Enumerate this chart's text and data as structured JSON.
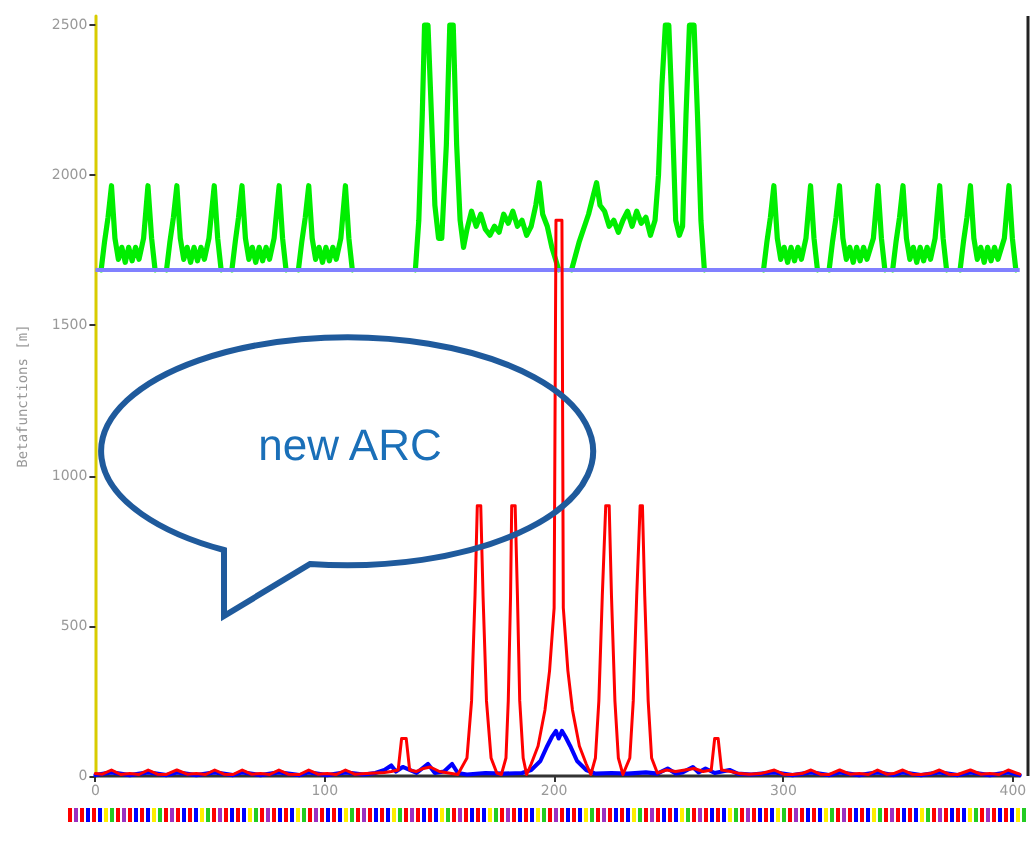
{
  "chart_data": {
    "type": "line",
    "ylabel": "Betafunctions [m]",
    "annotations": [
      "new ARC"
    ],
    "xlim": [
      0,
      403
    ],
    "xticks": [
      0,
      100,
      200,
      300,
      400
    ],
    "ylim": [
      0,
      2530
    ],
    "yticks": [
      0,
      500,
      1000,
      1500,
      2000,
      2500
    ],
    "grid": false,
    "line_style": "solid",
    "ref_lines": [
      {
        "axis": "y",
        "value": 1685,
        "label": null,
        "color": "#8080ff"
      }
    ],
    "series": [
      {
        "color": "#00ee00",
        "x": [
          2.5,
          4,
          5.5,
          7,
          8.5,
          10,
          11.5,
          13,
          14.5,
          16,
          17.5,
          19,
          21,
          22.9,
          24.5,
          26,
          29,
          31,
          32.5,
          34,
          35.5,
          37,
          38.5,
          40,
          41.5,
          43,
          44.5,
          46,
          47.5,
          49.5,
          51.8,
          53.3,
          54.8,
          57,
          59.5,
          61,
          62.4,
          63.9,
          65.4,
          66.9,
          68.4,
          69.9,
          71.4,
          72.9,
          74.4,
          75.9,
          77.9,
          80.1,
          81.6,
          83.1,
          86,
          88.5,
          90,
          91.5,
          93,
          94.5,
          96,
          97.5,
          99,
          100.5,
          102,
          103.5,
          105,
          107,
          109,
          110.5,
          112,
          125,
          139.5,
          141,
          142.5,
          143.5,
          145,
          146.5,
          148,
          149.6,
          151,
          153,
          154.5,
          156,
          157.5,
          159,
          160.5,
          162,
          164,
          166,
          168,
          170,
          172,
          174,
          176,
          178,
          180,
          182,
          184,
          186,
          188,
          190,
          192,
          193.5,
          195,
          197,
          199,
          202,
          205,
          207.6,
          211,
          215,
          218.5,
          220,
          222,
          224,
          226,
          228,
          230,
          232,
          234,
          236,
          238,
          240,
          242,
          244,
          245.5,
          247,
          248.5,
          250,
          251.5,
          253,
          254.6,
          256,
          257.5,
          259,
          261,
          262.5,
          264,
          265.5,
          280,
          291.3,
          292.8,
          294.3,
          295.8,
          297.3,
          298.8,
          300.3,
          301.8,
          303.3,
          304.8,
          306.3,
          307.8,
          309.8,
          311.8,
          313.3,
          314.8,
          317,
          319.9,
          321.4,
          322.9,
          324.4,
          325.9,
          327.4,
          328.9,
          330.4,
          331.9,
          333.4,
          334.9,
          336.4,
          339.2,
          341.2,
          342.7,
          344.2,
          346,
          347.6,
          349.1,
          350.6,
          352.1,
          353.6,
          355.1,
          356.6,
          358.1,
          359.6,
          361.1,
          362.6,
          364.1,
          366.1,
          368.1,
          369.6,
          371.1,
          374,
          377,
          378.5,
          380,
          381.5,
          383,
          384.5,
          386,
          387.5,
          389,
          390.5,
          392,
          393.5,
          396.3,
          398.3,
          399.8,
          401.3
        ],
        "values": [
          1685,
          1780,
          1860,
          1965,
          1790,
          1720,
          1760,
          1710,
          1760,
          1715,
          1760,
          1720,
          1790,
          1965,
          1790,
          1685,
          null,
          1685,
          1780,
          1860,
          1965,
          1790,
          1720,
          1760,
          1710,
          1760,
          1715,
          1760,
          1720,
          1790,
          1965,
          1790,
          1685,
          null,
          1685,
          1780,
          1860,
          1965,
          1790,
          1720,
          1760,
          1710,
          1760,
          1715,
          1760,
          1720,
          1790,
          1965,
          1790,
          1685,
          null,
          1685,
          1780,
          1860,
          1965,
          1790,
          1720,
          1760,
          1710,
          1760,
          1715,
          1760,
          1720,
          1790,
          1965,
          1790,
          1685,
          null,
          1685,
          1850,
          2200,
          2500,
          2500,
          2200,
          1900,
          1790,
          1790,
          2100,
          2500,
          2500,
          2100,
          1850,
          1760,
          1820,
          1880,
          1830,
          1870,
          1820,
          1800,
          1830,
          1810,
          1870,
          1840,
          1880,
          1830,
          1850,
          1800,
          1830,
          1900,
          1975,
          1870,
          1830,
          1760,
          1685,
          null,
          1685,
          1780,
          1870,
          1975,
          1900,
          1880,
          1830,
          1850,
          1810,
          1850,
          1880,
          1830,
          1880,
          1840,
          1860,
          1800,
          1850,
          2000,
          2300,
          2500,
          2500,
          2200,
          1850,
          1800,
          1830,
          2200,
          2500,
          2500,
          2200,
          1850,
          1685,
          null,
          1685,
          1780,
          1860,
          1965,
          1790,
          1720,
          1760,
          1710,
          1760,
          1715,
          1760,
          1720,
          1790,
          1965,
          1790,
          1685,
          null,
          1685,
          1780,
          1860,
          1965,
          1790,
          1720,
          1760,
          1710,
          1760,
          1715,
          1760,
          1720,
          1790,
          1965,
          1790,
          1685,
          null,
          1685,
          1780,
          1860,
          1965,
          1790,
          1720,
          1760,
          1710,
          1760,
          1715,
          1760,
          1720,
          1790,
          1965,
          1790,
          1685,
          null,
          1685,
          1780,
          1860,
          1965,
          1790,
          1720,
          1760,
          1710,
          1760,
          1715,
          1760,
          1720,
          1790,
          1965,
          1790,
          1685
        ]
      },
      {
        "color": "#0000ff",
        "x": [
          0,
          7,
          15,
          23,
          31,
          35.5,
          44,
          52,
          60,
          64,
          72,
          80,
          89,
          93,
          101,
          109,
          117,
          122,
          126,
          129,
          131,
          134,
          137,
          140,
          145,
          148,
          152,
          155.5,
          158,
          162,
          170,
          178,
          186,
          190,
          194,
          197,
          199,
          200.8,
          202,
          203.4,
          205,
          207,
          210,
          214,
          218,
          225,
          232,
          240,
          245,
          249.5,
          253,
          256,
          260.5,
          263,
          266,
          270,
          276.5,
          280,
          286,
          296,
          304,
          312,
          320,
          324.5,
          333,
          341,
          348,
          352,
          360,
          368,
          376,
          381.5,
          390,
          398,
          403
        ],
        "values": [
          3,
          12,
          3,
          12,
          3,
          12,
          3,
          12,
          3,
          12,
          3,
          12,
          3,
          12,
          3,
          12,
          5,
          10,
          20,
          35,
          15,
          30,
          20,
          10,
          40,
          10,
          15,
          40,
          10,
          5,
          10,
          8,
          10,
          20,
          50,
          100,
          130,
          150,
          125,
          150,
          130,
          100,
          50,
          20,
          8,
          10,
          8,
          12,
          8,
          25,
          8,
          12,
          30,
          12,
          25,
          10,
          20,
          8,
          5,
          12,
          3,
          12,
          3,
          12,
          3,
          12,
          3,
          12,
          3,
          12,
          3,
          12,
          3,
          12,
          3
        ]
      },
      {
        "color": "#ff0000",
        "x": [
          0,
          3,
          7,
          11,
          15,
          19,
          23,
          27,
          31,
          35.5,
          40,
          44,
          48,
          52,
          56,
          60,
          64,
          68,
          72,
          76,
          80,
          84,
          89,
          93,
          97,
          101,
          105,
          109,
          113,
          118,
          122,
          126,
          129,
          132,
          133.5,
          135.5,
          137,
          140,
          143,
          146,
          150,
          154,
          158,
          162,
          164,
          165.5,
          166.5,
          168,
          169,
          170.5,
          172.5,
          175,
          177,
          179,
          180,
          181,
          181.5,
          183,
          184,
          185,
          186.5,
          188,
          190,
          193,
          196,
          198,
          200,
          200.8,
          203.4,
          204,
          206,
          208,
          211,
          214,
          216,
          218,
          219.5,
          221,
          222.5,
          224,
          225,
          226.5,
          228,
          230,
          233,
          234.5,
          236,
          237.5,
          238.5,
          239.5,
          241,
          242.5,
          245,
          249,
          253,
          257,
          261,
          265,
          268.5,
          270,
          271.5,
          273,
          277,
          281,
          285,
          290,
          296,
          300,
          304,
          308,
          312,
          316,
          320,
          324.5,
          329,
          333,
          337,
          341,
          345,
          348,
          352,
          356,
          360,
          364,
          368,
          372,
          376,
          381.5,
          386,
          390,
          394,
          398,
          403
        ],
        "values": [
          8,
          6,
          20,
          5,
          8,
          5,
          20,
          6,
          5,
          20,
          6,
          8,
          5,
          20,
          6,
          5,
          20,
          6,
          8,
          5,
          20,
          6,
          5,
          20,
          6,
          8,
          5,
          20,
          6,
          8,
          10,
          12,
          15,
          20,
          125,
          125,
          20,
          15,
          25,
          30,
          15,
          10,
          5,
          60,
          250,
          600,
          900,
          900,
          600,
          250,
          60,
          10,
          5,
          60,
          250,
          600,
          900,
          900,
          600,
          250,
          60,
          5,
          40,
          100,
          220,
          350,
          560,
          1850,
          1850,
          560,
          350,
          220,
          100,
          40,
          5,
          60,
          250,
          600,
          900,
          900,
          600,
          250,
          60,
          5,
          60,
          250,
          600,
          900,
          900,
          600,
          250,
          60,
          10,
          20,
          15,
          20,
          25,
          15,
          20,
          125,
          125,
          20,
          15,
          8,
          6,
          8,
          20,
          6,
          5,
          8,
          20,
          6,
          5,
          20,
          6,
          8,
          5,
          20,
          6,
          8,
          20,
          6,
          5,
          8,
          20,
          6,
          5,
          20,
          6,
          8,
          5,
          20,
          6
        ]
      }
    ]
  }
}
